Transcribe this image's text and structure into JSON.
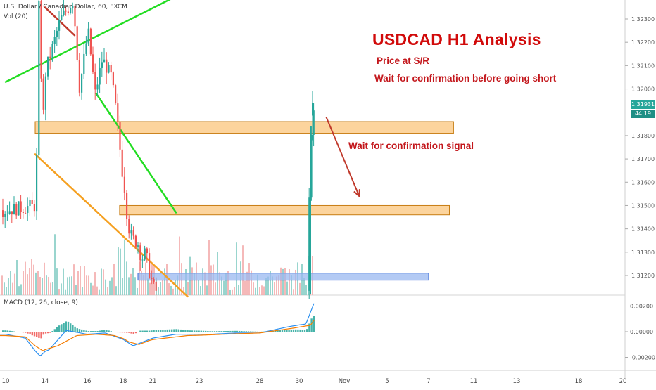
{
  "header": {
    "symbol_line": "U.S. Dollar / Canadian Dollar, 60, FXCM",
    "volume_label": "Vol (20)",
    "macd_label": "MACD (12, 26, close, 9)"
  },
  "annotations": {
    "title": "USDCAD H1 Analysis",
    "line1": "Price at S/R",
    "line2": "Wait for confirmation before going short",
    "signal": "Wait for confirmation signal"
  },
  "price_tag": {
    "value": "1.31931",
    "countdown": "44:19",
    "color": "#26a69a"
  },
  "colors": {
    "up": "#26a69a",
    "down": "#ef5350",
    "vol_up": "#7fcbc2",
    "vol_down": "#f2a7a7",
    "trend_green": "#22dd22",
    "trend_orange": "#f5a020",
    "trend_red": "#c0392b",
    "zone_orange_fill": "#fbc57c",
    "zone_blue_fill": "#9ab8f0",
    "macd_line": "#2a8ff0",
    "signal_line": "#f57c00",
    "title_red": "#d10a0a"
  },
  "chart_data": [
    {
      "type": "candlestick",
      "title": "U.S. Dollar / Canadian Dollar, 60, FXCM",
      "ylim": [
        1.3111,
        1.3246
      ],
      "y_ticks": [
        "1.32300",
        "1.32200",
        "1.32100",
        "1.32000",
        "1.31800",
        "1.31700",
        "1.31600",
        "1.31500",
        "1.31400",
        "1.31300",
        "1.31200"
      ],
      "x_ticks": [
        "10",
        "14",
        "16",
        "18",
        "21",
        "23",
        "28",
        "30",
        "Nov",
        "5",
        "7",
        "11",
        "13",
        "18",
        "20"
      ],
      "last_price": 1.31931,
      "approx_path": [
        {
          "t": 10.0,
          "p": 1.3148
        },
        {
          "t": 13.0,
          "p": 1.315
        },
        {
          "t": 13.3,
          "p": 1.3235
        },
        {
          "t": 13.7,
          "p": 1.3185
        },
        {
          "t": 14.0,
          "p": 1.3208
        },
        {
          "t": 14.7,
          "p": 1.323
        },
        {
          "t": 15.3,
          "p": 1.3238
        },
        {
          "t": 15.6,
          "p": 1.32
        },
        {
          "t": 16.0,
          "p": 1.3225
        },
        {
          "t": 16.4,
          "p": 1.3198
        },
        {
          "t": 16.8,
          "p": 1.3213
        },
        {
          "t": 17.3,
          "p": 1.3205
        },
        {
          "t": 17.6,
          "p": 1.3188
        },
        {
          "t": 17.9,
          "p": 1.3165
        },
        {
          "t": 18.4,
          "p": 1.3142
        },
        {
          "t": 18.8,
          "p": 1.3136
        },
        {
          "t": 19.4,
          "p": 1.3134
        },
        {
          "t": 19.8,
          "p": 1.3127
        },
        {
          "t": 20.2,
          "p": 1.313
        },
        {
          "t": 20.6,
          "p": 1.3121
        },
        {
          "t": 21.2,
          "p": 1.3112
        },
        {
          "t": 21.6,
          "p": 1.3112
        },
        {
          "t": 22.0,
          "p": 1.3112
        },
        {
          "t": 25.0,
          "p": 1.3113
        },
        {
          "t": 28.0,
          "p": 1.3113
        },
        {
          "t": 30.0,
          "p": 1.3113
        },
        {
          "t": 30.3,
          "p": 1.3113
        },
        {
          "t": 30.5,
          "p": 1.3182
        },
        {
          "t": 30.7,
          "p": 1.3193
        }
      ],
      "zones": [
        {
          "name": "resistance",
          "from": 1.3181,
          "to": 1.3186,
          "t_start": 13.0,
          "t_end": 39.2,
          "color": "#fbc57c"
        },
        {
          "name": "support",
          "from": 1.3146,
          "to": 1.315,
          "t_start": 17.8,
          "t_end": 39.0,
          "color": "#fbc57c"
        },
        {
          "name": "low-zone",
          "from": 1.3118,
          "to": 1.3121,
          "t_start": 19.5,
          "t_end": 38.0,
          "color": "#9ab8f0"
        }
      ],
      "trendlines": [
        {
          "name": "green-upper",
          "color": "#22dd22",
          "from": {
            "t": 10.0,
            "p": 1.3203
          },
          "to": {
            "t": 23.5,
            "p": 1.3246
          }
        },
        {
          "name": "green-lower",
          "color": "#22dd22",
          "from": {
            "t": 16.5,
            "p": 1.3198
          },
          "to": {
            "t": 22.0,
            "p": 1.3147
          }
        },
        {
          "name": "orange",
          "color": "#f5a020",
          "from": {
            "t": 13.0,
            "p": 1.3172
          },
          "to": {
            "t": 22.5,
            "p": 1.3111
          }
        },
        {
          "name": "red-short",
          "color": "#c0392b",
          "from": {
            "t": 14.0,
            "p": 1.3235
          },
          "to": {
            "t": 15.4,
            "p": 1.3223
          }
        }
      ],
      "arrow": {
        "from": {
          "t": 31.2,
          "p": 1.3188
        },
        "to": {
          "t": 33.4,
          "p": 1.3154
        },
        "color": "#c0392b"
      }
    },
    {
      "type": "line",
      "title": "MACD (12, 26, close, 9)",
      "ylim": [
        -0.0024,
        0.0026
      ],
      "y_ticks": [
        "0.00200",
        "0.00000",
        "-0.00200"
      ],
      "series": [
        {
          "name": "MACD",
          "color": "#2a8ff0",
          "approx_values": [
            {
              "t": 10.0,
              "v": -0.0002
            },
            {
              "t": 12.0,
              "v": -0.0005
            },
            {
              "t": 13.0,
              "v": -0.0015
            },
            {
              "t": 13.5,
              "v": -0.0019
            },
            {
              "t": 14.2,
              "v": -0.0014
            },
            {
              "t": 15.0,
              "v": 0.0001
            },
            {
              "t": 16.0,
              "v": -0.0002
            },
            {
              "t": 17.0,
              "v": -0.0001
            },
            {
              "t": 18.2,
              "v": -0.0007
            },
            {
              "t": 19.0,
              "v": -0.0011
            },
            {
              "t": 20.0,
              "v": -0.0008
            },
            {
              "t": 22.0,
              "v": -0.0002
            },
            {
              "t": 24.0,
              "v": -0.0002
            },
            {
              "t": 26.0,
              "v": -0.0001
            },
            {
              "t": 28.0,
              "v": -0.0001
            },
            {
              "t": 29.5,
              "v": 0.0004
            },
            {
              "t": 30.3,
              "v": 0.0006
            },
            {
              "t": 30.7,
              "v": 0.0024
            }
          ]
        },
        {
          "name": "Signal",
          "color": "#f57c00",
          "approx_values": [
            {
              "t": 10.0,
              "v": -0.0003
            },
            {
              "t": 12.0,
              "v": -0.0004
            },
            {
              "t": 13.0,
              "v": -0.0011
            },
            {
              "t": 13.8,
              "v": -0.0015
            },
            {
              "t": 14.6,
              "v": -0.0011
            },
            {
              "t": 15.5,
              "v": -0.0003
            },
            {
              "t": 16.5,
              "v": -0.0002
            },
            {
              "t": 17.5,
              "v": -0.0003
            },
            {
              "t": 18.6,
              "v": -0.0008
            },
            {
              "t": 19.6,
              "v": -0.001
            },
            {
              "t": 20.6,
              "v": -0.0007
            },
            {
              "t": 22.5,
              "v": -0.0003
            },
            {
              "t": 25.0,
              "v": -0.0002
            },
            {
              "t": 28.0,
              "v": -0.0001
            },
            {
              "t": 29.8,
              "v": 0.0003
            },
            {
              "t": 30.5,
              "v": 0.0005
            },
            {
              "t": 30.7,
              "v": 0.001
            }
          ]
        }
      ]
    }
  ]
}
